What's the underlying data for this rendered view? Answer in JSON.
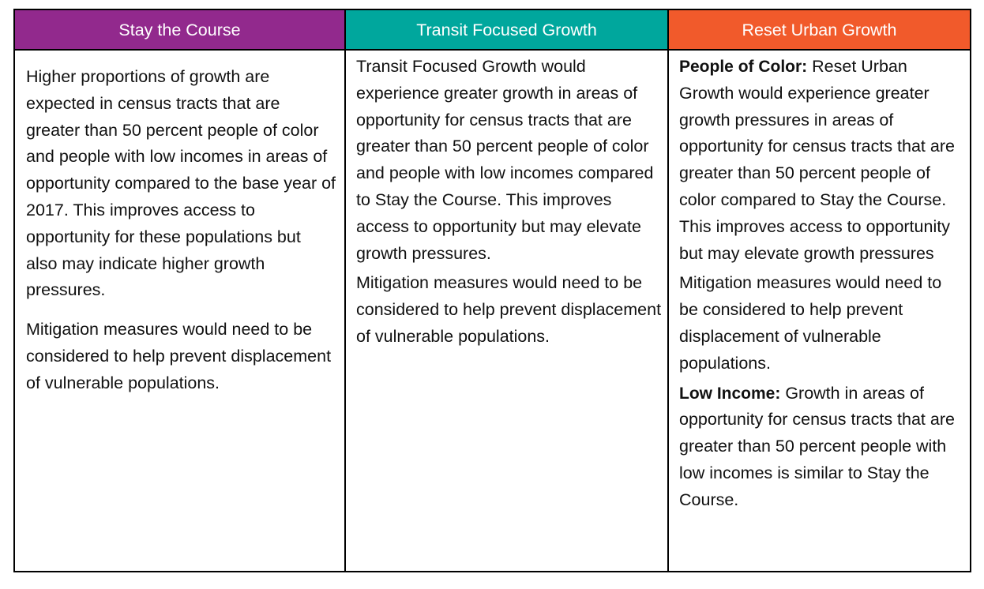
{
  "colors": {
    "stay_the_course": "#92298D",
    "transit_focused_growth": "#00A79D",
    "reset_urban_growth": "#F15A2B",
    "border": "#000000"
  },
  "table": {
    "headers": [
      "Stay the Course",
      "Transit Focused Growth",
      "Reset Urban Growth"
    ],
    "columns": {
      "stay_the_course": {
        "paragraphs": [
          "Higher proportions of growth are expected in census tracts that are greater than 50 percent people of color and people with low incomes in areas of opportunity compared to the base year of 2017. This improves access to opportunity for these populations but also may indicate higher growth pressures.",
          "Mitigation measures would need to be considered to help prevent displacement of vulnerable populations."
        ]
      },
      "transit_focused_growth": {
        "paragraphs": [
          "Transit Focused Growth would experience greater growth in areas of opportunity for census tracts that are greater than 50 percent people of color and people with low incomes compared to Stay the Course. This improves access to opportunity but may elevate growth pressures.",
          "Mitigation measures would need to be considered to help prevent displacement of vulnerable populations."
        ]
      },
      "reset_urban_growth": {
        "people_of_color_label": "People of Color:",
        "people_of_color_text": " Reset Urban Growth would experience greater growth pressures in areas of opportunity for census tracts that are greater than 50 percent people of color compared to Stay the Course. This improves access to opportunity but may elevate growth pressures",
        "mitigation_text": "Mitigation measures would need to be considered to help prevent displacement of vulnerable populations.",
        "low_income_label": "Low Income:",
        "low_income_text": " Growth in areas of opportunity for census tracts that are greater than 50 percent people with low incomes is similar to Stay the Course."
      }
    }
  }
}
